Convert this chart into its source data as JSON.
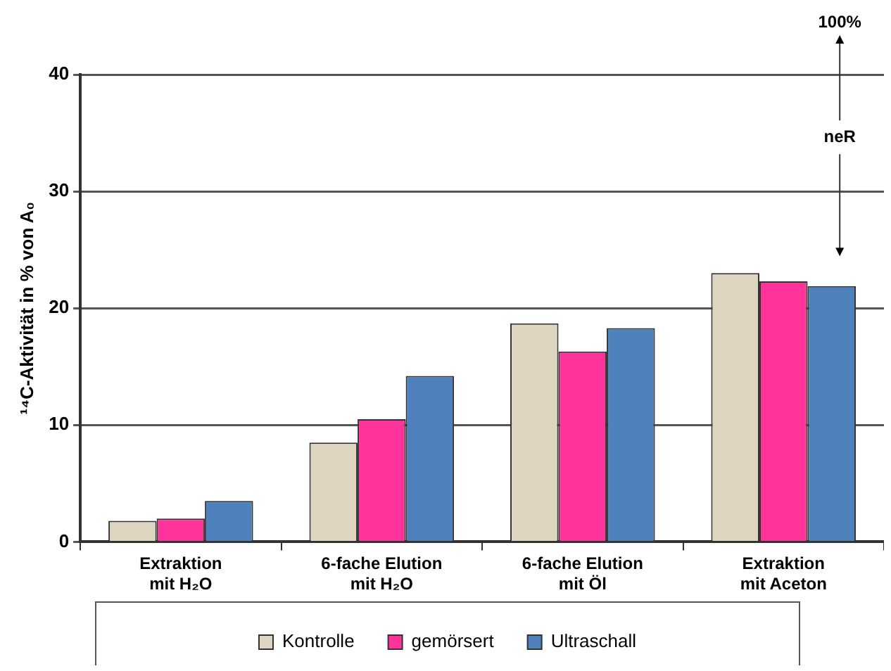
{
  "chart_data": {
    "type": "bar",
    "ylabel": "¹⁴C-Aktivität in % von A₀",
    "categories": [
      "Extraktion\nmit H₂O",
      "6-fache Elution\nmit H₂O",
      "6-fache Elution\nmit Öl",
      "Extraktion\nmit Aceton"
    ],
    "series": [
      {
        "name": "Kontrolle",
        "color": "#ddd5c0",
        "values": [
          1.8,
          8.5,
          18.7,
          23.0
        ]
      },
      {
        "name": "gemörsert",
        "color": "#ff3399",
        "values": [
          2.0,
          10.5,
          16.3,
          22.3
        ]
      },
      {
        "name": "Ultraschall",
        "color": "#4f81bd",
        "values": [
          3.5,
          14.2,
          18.3,
          21.9
        ]
      }
    ],
    "ylim": [
      0,
      40
    ],
    "yticks": [
      0,
      10,
      20,
      30,
      40
    ],
    "grid": "y",
    "legend": "bottom",
    "annotations": [
      "100%",
      "neR"
    ]
  }
}
